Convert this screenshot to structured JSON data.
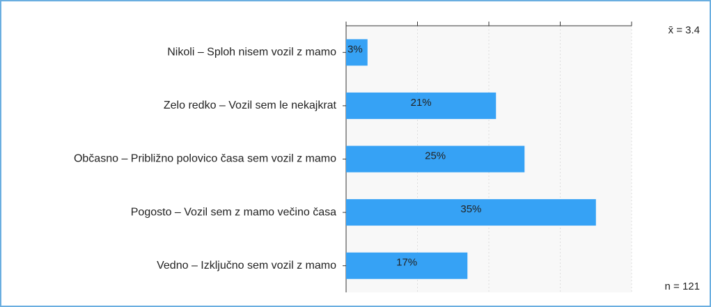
{
  "chart_data": {
    "type": "barh",
    "categories": [
      "Nikoli – Sploh nisem vozil z mamo",
      "Zelo redko – Vozil sem le nekajkrat",
      "Občasno – Približno polovico časa sem vozil z mamo",
      "Pogosto – Vozil sem z mamo večino časa",
      "Vedno – Izključno sem vozil z mamo"
    ],
    "values": [
      3,
      21,
      25,
      35,
      17
    ],
    "value_labels": [
      "3%",
      "21%",
      "25%",
      "35%",
      "17%"
    ],
    "color": "#36a2f5",
    "xlim": [
      0,
      40
    ],
    "xticks": [
      0,
      10,
      20,
      30,
      40
    ],
    "grid": true,
    "annotations": [
      "x̄ = 3.4",
      "n = 121"
    ]
  }
}
